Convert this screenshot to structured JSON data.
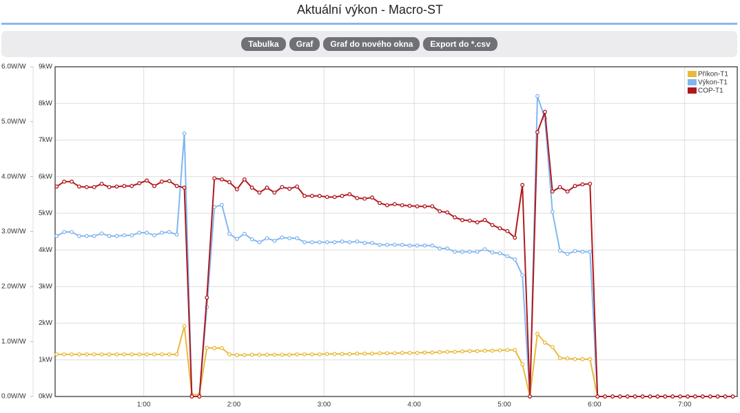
{
  "header": {
    "title": "Aktuální výkon - Macro-ST"
  },
  "toolbar": {
    "buttons": [
      "Tabulka",
      "Graf",
      "Graf do nového okna",
      "Export do *.csv"
    ]
  },
  "chart_data": {
    "type": "line",
    "x": [
      2,
      7,
      12,
      17,
      22,
      27,
      32,
      37,
      42,
      47,
      52,
      57,
      62,
      67,
      72,
      77,
      82,
      87,
      92,
      97,
      102,
      107,
      112,
      117,
      122,
      127,
      132,
      137,
      142,
      147,
      152,
      157,
      162,
      167,
      172,
      177,
      182,
      187,
      192,
      197,
      202,
      207,
      212,
      217,
      222,
      227,
      232,
      237,
      242,
      247,
      252,
      257,
      262,
      267,
      272,
      277,
      282,
      287,
      292,
      297,
      302,
      307,
      312,
      317,
      322,
      327,
      332,
      337,
      342,
      347,
      352,
      357,
      362,
      367,
      372,
      377,
      382,
      387,
      392,
      397,
      402,
      407,
      412,
      417,
      422,
      427,
      432,
      437,
      442,
      447,
      452
    ],
    "xlim": [
      1,
      455
    ],
    "xticks": [
      {
        "value": 60,
        "label": "1:00"
      },
      {
        "value": 120,
        "label": "2:00"
      },
      {
        "value": 180,
        "label": "3:00"
      },
      {
        "value": 240,
        "label": "4:00"
      },
      {
        "value": 300,
        "label": "5:00"
      },
      {
        "value": 360,
        "label": "6:00"
      },
      {
        "value": 420,
        "label": "7:00"
      }
    ],
    "ylim": [
      0,
      9
    ],
    "yticks": [
      {
        "value": 0,
        "label": "0kW"
      },
      {
        "value": 1,
        "label": "1kW"
      },
      {
        "value": 2,
        "label": "2kW"
      },
      {
        "value": 3,
        "label": "3kW"
      },
      {
        "value": 4,
        "label": "4kW"
      },
      {
        "value": 5,
        "label": "5kW"
      },
      {
        "value": 6,
        "label": "6kW"
      },
      {
        "value": 7,
        "label": "7kW"
      },
      {
        "value": 8,
        "label": "8kW"
      },
      {
        "value": 9,
        "label": "9kW"
      }
    ],
    "y2lim": [
      0,
      6
    ],
    "y2ticks": [
      {
        "value": 0,
        "label": "0.0W/W"
      },
      {
        "value": 1,
        "label": "1.0W/W"
      },
      {
        "value": 2,
        "label": "2.0W/W"
      },
      {
        "value": 3,
        "label": "3.0W/W"
      },
      {
        "value": 4,
        "label": "4.0W/W"
      },
      {
        "value": 5,
        "label": "5.0W/W"
      },
      {
        "value": 6,
        "label": "6.0W/W"
      }
    ],
    "grid": true,
    "legend": "upper right",
    "series": [
      {
        "name": "Příkon-T1",
        "color": "#e9b93a",
        "values": [
          1.15,
          1.15,
          1.15,
          1.15,
          1.15,
          1.15,
          1.15,
          1.15,
          1.15,
          1.15,
          1.15,
          1.15,
          1.15,
          1.15,
          1.15,
          1.15,
          1.15,
          1.92,
          0.05,
          0.05,
          1.33,
          1.32,
          1.32,
          1.15,
          1.13,
          1.13,
          1.14,
          1.14,
          1.14,
          1.14,
          1.14,
          1.14,
          1.15,
          1.15,
          1.15,
          1.15,
          1.16,
          1.16,
          1.16,
          1.16,
          1.17,
          1.17,
          1.17,
          1.18,
          1.18,
          1.18,
          1.19,
          1.19,
          1.19,
          1.2,
          1.2,
          1.21,
          1.22,
          1.22,
          1.23,
          1.24,
          1.24,
          1.25,
          1.25,
          1.26,
          1.27,
          1.27,
          0.88,
          0,
          1.71,
          1.47,
          1.35,
          1.05,
          1.04,
          1.02,
          1.02,
          1.02,
          0,
          0,
          0,
          0,
          0,
          0,
          0,
          0,
          0,
          0,
          0,
          0,
          0,
          0,
          0,
          0,
          0,
          0,
          0
        ]
      },
      {
        "name": "Výkon-T1",
        "color": "#80b7ef",
        "values": [
          4.38,
          4.49,
          4.49,
          4.38,
          4.38,
          4.38,
          4.45,
          4.38,
          4.38,
          4.4,
          4.4,
          4.47,
          4.47,
          4.4,
          4.47,
          4.49,
          4.42,
          7.18,
          0,
          0,
          2.44,
          5.17,
          5.23,
          4.44,
          4.3,
          4.44,
          4.29,
          4.21,
          4.32,
          4.25,
          4.34,
          4.32,
          4.32,
          4.21,
          4.21,
          4.21,
          4.21,
          4.21,
          4.23,
          4.21,
          4.23,
          4.19,
          4.19,
          4.14,
          4.14,
          4.14,
          4.14,
          4.12,
          4.12,
          4.12,
          4.12,
          4.04,
          4.04,
          3.95,
          3.95,
          3.95,
          3.95,
          4.02,
          3.93,
          3.91,
          3.83,
          3.74,
          3.31,
          0,
          8.2,
          7.59,
          5.04,
          3.98,
          3.89,
          3.97,
          3.95,
          3.95,
          0,
          0,
          0,
          0,
          0,
          0,
          0,
          0,
          0,
          0,
          0,
          0,
          0,
          0,
          0,
          0,
          0,
          0,
          0
        ]
      },
      {
        "name": "COP-T1",
        "color": "#b0171c",
        "axis": "y2",
        "values": [
          3.82,
          3.91,
          3.91,
          3.82,
          3.81,
          3.81,
          3.87,
          3.81,
          3.82,
          3.83,
          3.83,
          3.88,
          3.93,
          3.83,
          3.91,
          3.92,
          3.83,
          3.8,
          0,
          0,
          1.8,
          3.97,
          3.95,
          3.9,
          3.77,
          3.95,
          3.8,
          3.71,
          3.8,
          3.71,
          3.81,
          3.78,
          3.82,
          3.65,
          3.65,
          3.65,
          3.63,
          3.63,
          3.65,
          3.68,
          3.61,
          3.6,
          3.62,
          3.52,
          3.48,
          3.5,
          3.48,
          3.47,
          3.46,
          3.46,
          3.46,
          3.37,
          3.35,
          3.26,
          3.21,
          3.2,
          3.17,
          3.21,
          3.12,
          3.06,
          3.01,
          2.89,
          3.85,
          0,
          4.81,
          5.18,
          3.73,
          3.81,
          3.73,
          3.83,
          3.86,
          3.87,
          0,
          0,
          0,
          0,
          0,
          0,
          0,
          0,
          0,
          0,
          0,
          0,
          0,
          0,
          0,
          0,
          0,
          0,
          0
        ]
      }
    ]
  }
}
